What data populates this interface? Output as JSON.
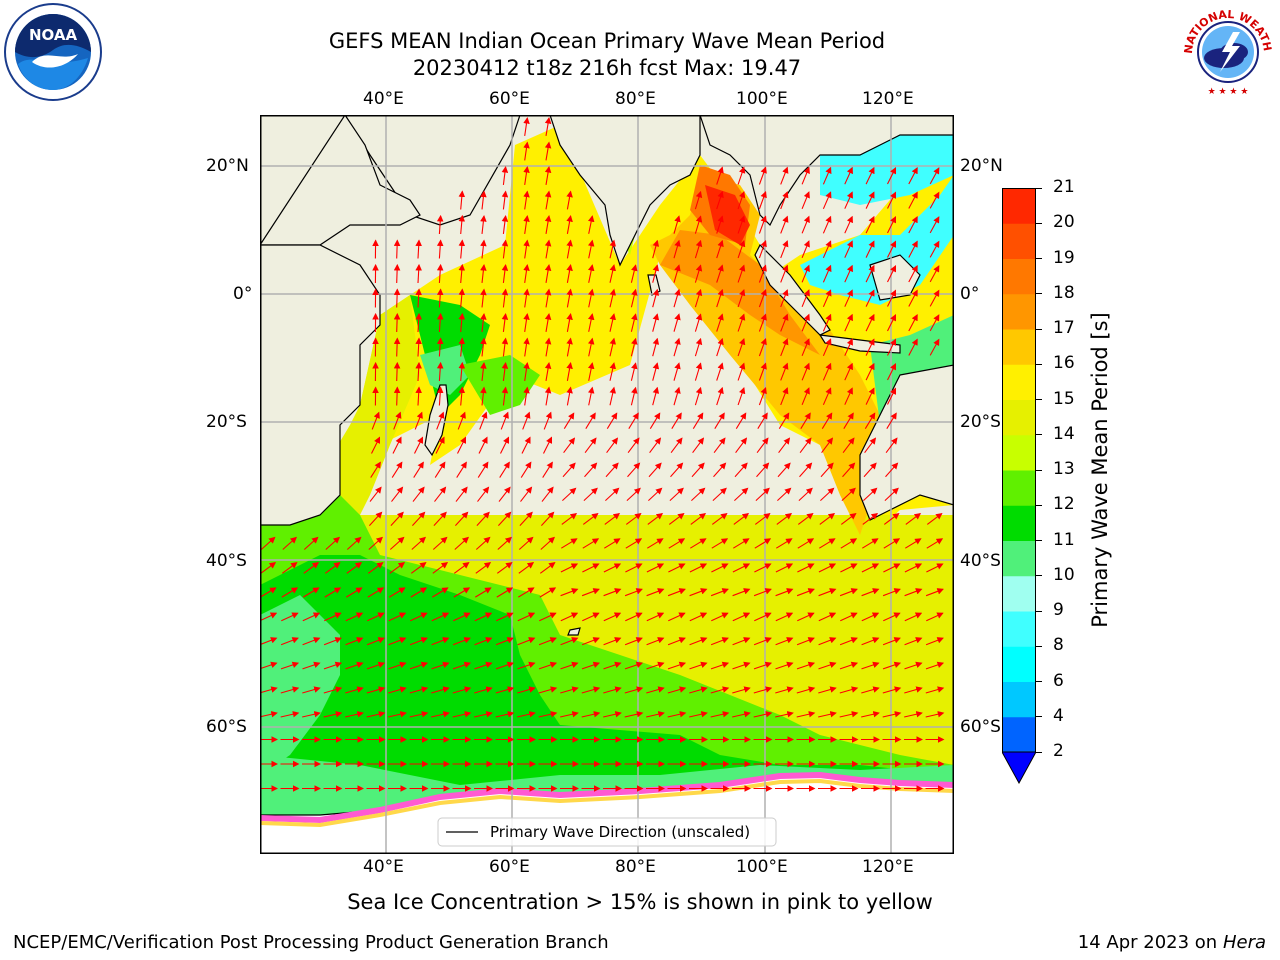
{
  "title": {
    "line1": "GEFS MEAN Indian Ocean Primary Wave Mean Period",
    "line2": "20230412 t18z 216h fcst   Max: 19.47"
  },
  "map": {
    "lon_ticks": [
      "40°E",
      "60°E",
      "80°E",
      "100°E",
      "120°E"
    ],
    "lat_ticks": [
      "20°N",
      "0°",
      "20°S",
      "40°S",
      "60°S"
    ],
    "lon_range": [
      20,
      130
    ],
    "lat_range": [
      -78,
      30
    ],
    "legend_label": "Primary Wave Direction (unscaled)",
    "arrow_color": "#ff0000"
  },
  "colorbar": {
    "label": "Primary Wave Mean Period [s]",
    "levels": [
      "2",
      "4",
      "6",
      "8",
      "9",
      "10",
      "11",
      "12",
      "13",
      "14",
      "15",
      "16",
      "17",
      "18",
      "19",
      "20",
      "21"
    ],
    "colors": [
      "#0064ff",
      "#00c8ff",
      "#00ffff",
      "#40ffff",
      "#a0fff0",
      "#50f07a",
      "#00dc00",
      "#60f000",
      "#c8ff00",
      "#e6f000",
      "#fff000",
      "#ffc800",
      "#ff9600",
      "#ff7800",
      "#ff5000",
      "#ff2800"
    ],
    "under_color": "#0000ff"
  },
  "caption": "Sea Ice Concentration > 15% is shown in pink to yellow",
  "footer": {
    "left": "NCEP/EMC/Verification Post Processing Product Generation Branch",
    "right_prefix": "14 Apr 2023 on ",
    "right_host": "Hera"
  },
  "logos": {
    "noaa_text": "NOAA",
    "nws_text": "NATIONAL WEATHER SERVICE"
  }
}
